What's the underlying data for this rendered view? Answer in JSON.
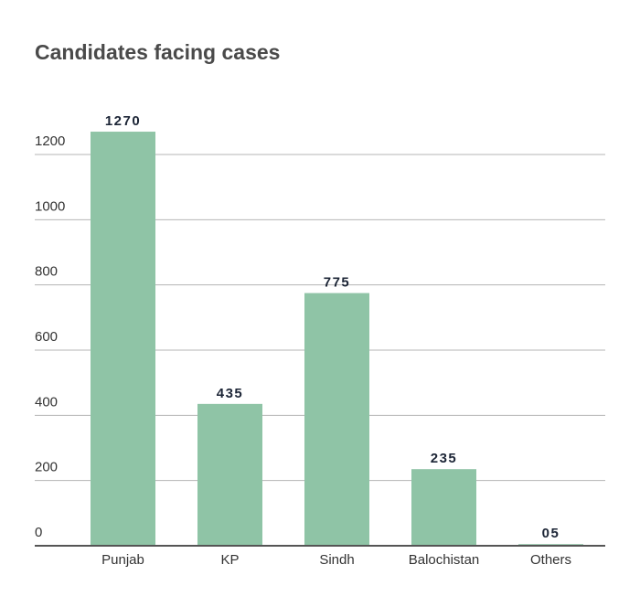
{
  "chart_data": {
    "type": "bar",
    "title": "Candidates facing cases",
    "categories": [
      "Punjab",
      "KP",
      "Sindh",
      "Balochistan",
      "Others"
    ],
    "values": [
      1270,
      435,
      775,
      235,
      5
    ],
    "data_labels": [
      "1270",
      "435",
      "775",
      "235",
      "05"
    ],
    "yticks": [
      0,
      200,
      400,
      600,
      800,
      1000,
      1200
    ],
    "ylim": [
      0,
      1200
    ],
    "xlabel": "",
    "ylabel": "",
    "grid": true,
    "bar_color": "#8fc4a6",
    "grid_color": "#b5b5b5",
    "axis_color": "#555555"
  }
}
